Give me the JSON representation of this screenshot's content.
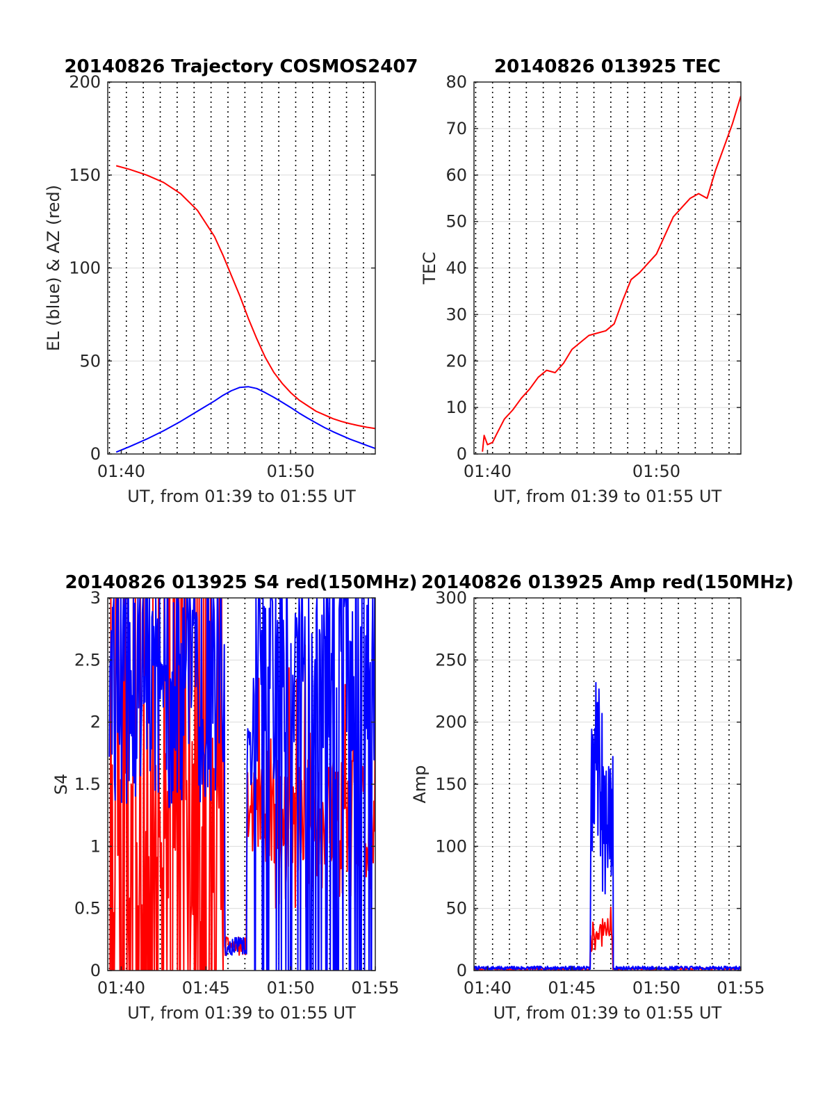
{
  "colors": {
    "el": "#0000ff",
    "az": "#ff0000",
    "axis": "#262626",
    "hgrid": "#dcdcdc",
    "vgrid": "#000000"
  },
  "chart_data": [
    {
      "id": "trajectory",
      "type": "line",
      "title": "20140826 Trajectory COSMOS2407",
      "xlabel": "UT, from 01:39 to 01:55 UT",
      "ylabel": "EL (blue) & AZ (red)",
      "xlim": [
        99.2,
        115
      ],
      "ylim": [
        0,
        200
      ],
      "xticks": [
        100,
        110
      ],
      "xtick_labels": [
        "01:40",
        "01:50"
      ],
      "yticks": [
        0,
        50,
        100,
        150,
        200
      ],
      "ytick_labels": [
        "0",
        "50",
        "100",
        "150",
        "200"
      ],
      "grid": true,
      "series": [
        {
          "color": "#ff0000",
          "x": [
            99.7,
            100.5,
            101.5,
            102.5,
            103.5,
            104.5,
            105.5,
            106.0,
            106.5,
            107.0,
            107.5,
            108.0,
            108.5,
            109.0,
            109.5,
            110.0,
            110.5,
            111.0,
            111.5,
            112.0,
            112.5,
            113.0,
            113.5,
            114.0,
            114.5,
            115.0
          ],
          "y": [
            155,
            153,
            150,
            146,
            140,
            131,
            117,
            107,
            96,
            85,
            73,
            62,
            52,
            44,
            38,
            33,
            29,
            26,
            23,
            21,
            19,
            17.5,
            16.3,
            15.3,
            14.4,
            13.7
          ]
        },
        {
          "color": "#0000ff",
          "x": [
            99.7,
            100.5,
            101.5,
            102.5,
            103.5,
            104.5,
            105.5,
            106.0,
            106.5,
            107.0,
            107.5,
            108.0,
            108.5,
            109.0,
            109.5,
            110.0,
            110.5,
            111.0,
            111.5,
            112.0,
            112.5,
            113.0,
            113.5,
            114.0,
            114.5,
            115.0
          ],
          "y": [
            1,
            4,
            8,
            12.5,
            17.5,
            23,
            28.5,
            31.5,
            34,
            35.8,
            36.2,
            35.2,
            33,
            30.5,
            27.8,
            25,
            22,
            19.3,
            16.7,
            14.2,
            12,
            10,
            8,
            6.3,
            4.6,
            3
          ]
        }
      ]
    },
    {
      "id": "tec",
      "type": "line",
      "title": "20140826 013925 TEC",
      "xlabel": "UT, from 01:39 to 01:55 UT",
      "ylabel": "TEC",
      "xlim": [
        99.2,
        115
      ],
      "ylim": [
        0,
        80
      ],
      "xticks": [
        100,
        110
      ],
      "xtick_labels": [
        "01:40",
        "01:50"
      ],
      "yticks": [
        0,
        10,
        20,
        30,
        40,
        50,
        60,
        70,
        80
      ],
      "ytick_labels": [
        "0",
        "10",
        "20",
        "30",
        "40",
        "50",
        "60",
        "70",
        "80"
      ],
      "grid": true,
      "series": [
        {
          "color": "#ff0000",
          "x": [
            99.7,
            99.8,
            100.0,
            100.3,
            100.5,
            101.0,
            101.5,
            102.0,
            102.5,
            103.0,
            103.5,
            104.0,
            104.5,
            105.0,
            105.5,
            106.0,
            106.5,
            107.0,
            107.5,
            108.0,
            108.5,
            109.0,
            109.5,
            110.0,
            110.5,
            111.0,
            111.5,
            112.0,
            112.5,
            113.0,
            113.5,
            114.0,
            114.5,
            115.0
          ],
          "y": [
            0.5,
            4,
            2,
            2.5,
            4,
            7.5,
            9.5,
            12,
            14,
            16.5,
            18,
            17.5,
            19.5,
            22.5,
            24,
            25.5,
            26,
            26.5,
            28,
            33,
            37.5,
            39,
            41,
            43,
            47,
            51,
            53,
            55,
            56,
            55,
            61,
            66,
            71,
            77
          ]
        }
      ]
    },
    {
      "id": "s4",
      "type": "line",
      "title": "20140826 013925 S4 red(150MHz)",
      "xlabel": "UT, from 01:39 to 01:55 UT",
      "ylabel": "S4",
      "xlim": [
        99.2,
        115
      ],
      "ylim": [
        0,
        3
      ],
      "xticks": [
        100,
        105,
        110,
        115
      ],
      "xtick_labels": [
        "01:40",
        "01:45",
        "01:50",
        "01:55"
      ],
      "yticks": [
        0,
        0.5,
        1,
        1.5,
        2,
        2.5,
        3
      ],
      "ytick_labels": [
        "0",
        "0.5",
        "1",
        "1.5",
        "2",
        "2.5",
        "3"
      ],
      "grid": true,
      "series": [
        {
          "color": "#ff0000",
          "x_range": [
            99.3,
            115
          ],
          "n": 380,
          "seed": 11,
          "noise": "s4_red"
        },
        {
          "color": "#0000ff",
          "x_range": [
            99.3,
            115
          ],
          "n": 420,
          "seed": 29,
          "noise": "s4_blue"
        }
      ]
    },
    {
      "id": "amp",
      "type": "line",
      "title": "20140826 013925 Amp red(150MHz)",
      "xlabel": "UT, from 01:39 to 01:55 UT",
      "ylabel": "Amp",
      "xlim": [
        99.2,
        115
      ],
      "ylim": [
        0,
        300
      ],
      "xticks": [
        100,
        105,
        110,
        115
      ],
      "xtick_labels": [
        "01:40",
        "01:45",
        "01:50",
        "01:55"
      ],
      "yticks": [
        0,
        50,
        100,
        150,
        200,
        250,
        300
      ],
      "ytick_labels": [
        "0",
        "50",
        "100",
        "150",
        "200",
        "250",
        "300"
      ],
      "grid": true,
      "series": [
        {
          "color": "#ff0000",
          "x_range": [
            99.2,
            115
          ],
          "n": 360,
          "seed": 5,
          "noise": "amp_red"
        },
        {
          "color": "#0000ff",
          "x_range": [
            99.2,
            115
          ],
          "n": 520,
          "seed": 7,
          "noise": "amp_blue"
        }
      ]
    }
  ]
}
